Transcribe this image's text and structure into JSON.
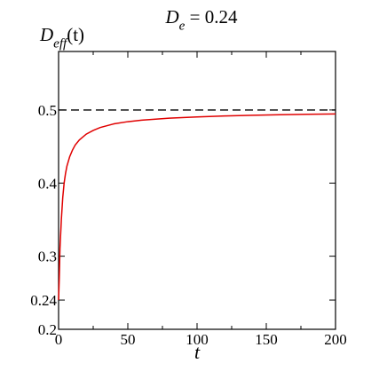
{
  "chart_data": {
    "type": "line",
    "title": {
      "main": "D",
      "sub": "e",
      "rest": " = 0.24"
    },
    "ylabel": {
      "main": "D",
      "sub": "eff",
      "rest": "(t)"
    },
    "xlabel": "t",
    "xlim": [
      0,
      200
    ],
    "ylim": [
      0.2,
      0.58
    ],
    "x_ticks": [
      0,
      50,
      100,
      150,
      200
    ],
    "x_tick_labels": [
      "0",
      "50",
      "100",
      "150",
      "200"
    ],
    "y_ticks": [
      0.2,
      0.24,
      0.3,
      0.4,
      0.5
    ],
    "y_tick_labels": [
      "0.2",
      "0.24",
      "0.3",
      "0.4",
      "0.5"
    ],
    "grid": false,
    "reference_line": {
      "y": 0.5,
      "style": "dashed",
      "color": "#000000"
    },
    "series": [
      {
        "color": "#e00000",
        "x": [
          0,
          0.5,
          1,
          2,
          3,
          4,
          5,
          6,
          8,
          10,
          12,
          15,
          20,
          25,
          30,
          40,
          50,
          60,
          70,
          80,
          100,
          120,
          140,
          160,
          180,
          200
        ],
        "y": [
          0.24,
          0.27,
          0.31,
          0.35,
          0.38,
          0.4,
          0.413,
          0.423,
          0.436,
          0.445,
          0.452,
          0.459,
          0.467,
          0.472,
          0.476,
          0.481,
          0.484,
          0.486,
          0.4875,
          0.4888,
          0.4905,
          0.4918,
          0.4928,
          0.4935,
          0.4941,
          0.4945
        ]
      }
    ]
  }
}
